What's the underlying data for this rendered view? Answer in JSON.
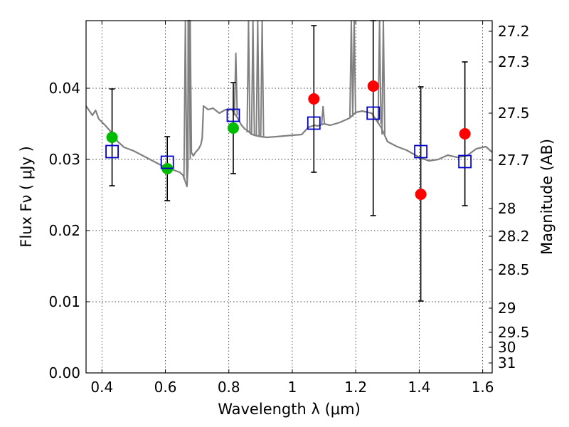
{
  "chart_data": {
    "type": "scatter",
    "xlabel": "Wavelength  λ (μm)",
    "ylabel": "Flux  Fν  ( μJy )",
    "ylabel_right": "Magnitude (AB)",
    "xlim": [
      0.35,
      1.63
    ],
    "ylim": [
      0.0,
      0.0495
    ],
    "x_ticks": [
      0.4,
      0.6,
      0.8,
      1.0,
      1.2,
      1.4,
      1.6
    ],
    "x_tick_labels": [
      "0.4",
      "0.6",
      "0.8",
      "1",
      "1.2",
      "1.4",
      "1.6"
    ],
    "y_ticks": [
      0.0,
      0.01,
      0.02,
      0.03,
      0.04
    ],
    "y_tick_labels": [
      "0.00",
      "0.01",
      "0.02",
      "0.03",
      "0.04"
    ],
    "right_ticks": [
      {
        "flux": 0.048,
        "label": "27.2"
      },
      {
        "flux": 0.0437,
        "label": "27.3"
      },
      {
        "flux": 0.0365,
        "label": "27.5"
      },
      {
        "flux": 0.0299,
        "label": "27.7"
      },
      {
        "flux": 0.0231,
        "label": "28"
      },
      {
        "flux": 0.0192,
        "label": "28.2"
      },
      {
        "flux": 0.0145,
        "label": "28.5"
      },
      {
        "flux": 0.0091,
        "label": "29"
      },
      {
        "flux": 0.0057,
        "label": "29.5"
      },
      {
        "flux": 0.0036,
        "label": "30"
      },
      {
        "flux": 0.0014,
        "label": "31"
      }
    ],
    "grid": true,
    "model_spectrum": {
      "color": "#808080",
      "x": [
        0.35,
        0.37,
        0.38,
        0.39,
        0.41,
        0.43,
        0.45,
        0.47,
        0.5,
        0.53,
        0.56,
        0.59,
        0.62,
        0.645,
        0.655,
        0.662,
        0.668,
        0.671,
        0.672,
        0.678,
        0.682,
        0.688,
        0.695,
        0.705,
        0.712,
        0.716,
        0.72,
        0.735,
        0.75,
        0.77,
        0.79,
        0.81,
        0.825,
        0.84,
        0.85,
        0.86,
        0.87,
        0.88,
        0.89,
        0.9,
        0.92,
        0.95,
        1.0,
        1.03,
        1.05,
        1.07,
        1.08,
        1.1,
        1.12,
        1.15,
        1.18,
        1.2,
        1.22,
        1.25,
        1.28,
        1.3,
        1.33,
        1.36,
        1.4,
        1.43,
        1.46,
        1.49,
        1.52,
        1.55,
        1.58,
        1.61,
        1.63
      ],
      "y": [
        0.0375,
        0.0362,
        0.0369,
        0.0357,
        0.0348,
        0.0338,
        0.0325,
        0.0317,
        0.0312,
        0.0305,
        0.0298,
        0.0291,
        0.0286,
        0.0282,
        0.0278,
        0.027,
        0.0262,
        0.029,
        0.0495,
        0.0495,
        0.031,
        0.0305,
        0.031,
        0.0315,
        0.0321,
        0.033,
        0.0375,
        0.037,
        0.0372,
        0.0365,
        0.037,
        0.037,
        0.036,
        0.0348,
        0.0343,
        0.034,
        0.0336,
        0.0334,
        0.0333,
        0.0332,
        0.0331,
        0.0332,
        0.0334,
        0.0335,
        0.0345,
        0.0348,
        0.0347,
        0.035,
        0.0348,
        0.0352,
        0.0358,
        0.0366,
        0.0368,
        0.0365,
        0.0345,
        0.0325,
        0.0318,
        0.0313,
        0.0303,
        0.0298,
        0.03,
        0.0306,
        0.0303,
        0.0305,
        0.0315,
        0.0318,
        0.031
      ],
      "spikes": [
        {
          "x": 0.663,
          "top": 0.0495,
          "base": 0.0272
        },
        {
          "x": 0.674,
          "top": 0.0495,
          "base": 0.03
        },
        {
          "x": 0.822,
          "top": 0.045,
          "base": 0.0362
        },
        {
          "x": 0.862,
          "top": 0.0495,
          "base": 0.0338
        },
        {
          "x": 0.876,
          "top": 0.0495,
          "base": 0.0334
        },
        {
          "x": 0.891,
          "top": 0.0495,
          "base": 0.0333
        },
        {
          "x": 0.905,
          "top": 0.0495,
          "base": 0.0332
        },
        {
          "x": 1.097,
          "top": 0.0375,
          "base": 0.0349
        },
        {
          "x": 1.186,
          "top": 0.0495,
          "base": 0.036
        },
        {
          "x": 1.195,
          "top": 0.0495,
          "base": 0.0364
        },
        {
          "x": 1.275,
          "top": 0.0495,
          "base": 0.035
        },
        {
          "x": 1.287,
          "top": 0.0495,
          "base": 0.0335
        }
      ]
    },
    "error_bars": [
      {
        "x": 0.432,
        "low": 0.0263,
        "high": 0.0399
      },
      {
        "x": 0.606,
        "low": 0.0242,
        "high": 0.0332
      },
      {
        "x": 0.814,
        "low": 0.028,
        "high": 0.0408
      },
      {
        "x": 1.068,
        "low": 0.0282,
        "high": 0.0488
      },
      {
        "x": 1.255,
        "low": 0.0221,
        "high": 0.05
      },
      {
        "x": 1.405,
        "low": 0.0101,
        "high": 0.0402
      },
      {
        "x": 1.544,
        "low": 0.0235,
        "high": 0.0437
      }
    ],
    "model_points": {
      "marker": "open-square",
      "color": "#0000cc",
      "x": [
        0.432,
        0.606,
        0.814,
        1.068,
        1.255,
        1.405,
        1.544
      ],
      "y": [
        0.0311,
        0.0296,
        0.0362,
        0.0351,
        0.0365,
        0.0311,
        0.0297
      ]
    },
    "observed_green": {
      "marker": "filled-circle",
      "color": "#00bb00",
      "x": [
        0.432,
        0.606,
        0.814
      ],
      "y": [
        0.0331,
        0.0287,
        0.0344
      ]
    },
    "observed_red": {
      "marker": "filled-circle",
      "color": "#ff0000",
      "x": [
        1.068,
        1.255,
        1.405,
        1.544
      ],
      "y": [
        0.0385,
        0.0403,
        0.0251,
        0.0336
      ]
    }
  }
}
